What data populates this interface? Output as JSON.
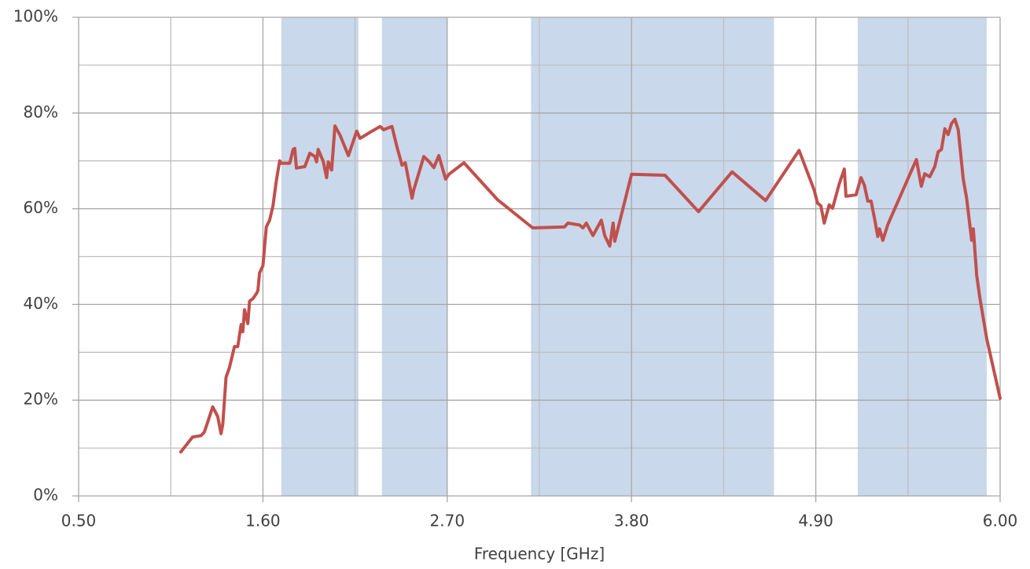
{
  "chart_data": {
    "type": "line",
    "xlabel": "Frequency [GHz]",
    "color": "#c0504d",
    "grid": true,
    "band_color": "#c9d8eb",
    "bands": [
      [
        1.71,
        2.17
      ],
      [
        2.31,
        2.7
      ],
      [
        3.2,
        4.65
      ],
      [
        5.15,
        5.92
      ]
    ],
    "xlim": [
      0.5,
      6.0
    ],
    "xticks": [
      {
        "value": 0.5,
        "label": "0.50"
      },
      {
        "value": 1.6,
        "label": "1.60"
      },
      {
        "value": 2.7,
        "label": "2.70"
      },
      {
        "value": 3.8,
        "label": "3.80"
      },
      {
        "value": 4.9,
        "label": "4.90"
      },
      {
        "value": 6.0,
        "label": "6.00"
      }
    ],
    "xminor": [
      1.05,
      2.15,
      3.25,
      4.35,
      5.45
    ],
    "ylim": [
      0,
      100
    ],
    "yticks": [
      {
        "value": 0,
        "label": "0%"
      },
      {
        "value": 20,
        "label": "20%"
      },
      {
        "value": 40,
        "label": "40%"
      },
      {
        "value": 60,
        "label": "60%"
      },
      {
        "value": 80,
        "label": "80%"
      },
      {
        "value": 100,
        "label": "100%"
      }
    ],
    "yminor": [
      10,
      30,
      50,
      70,
      90
    ],
    "x": [
      1.11,
      1.18,
      1.23,
      1.25,
      1.27,
      1.3,
      1.33,
      1.35,
      1.36,
      1.38,
      1.4,
      1.43,
      1.45,
      1.47,
      1.48,
      1.49,
      1.51,
      1.52,
      1.54,
      1.56,
      1.57,
      1.58,
      1.6,
      1.62,
      1.64,
      1.66,
      1.68,
      1.7,
      1.71,
      1.76,
      1.78,
      1.79,
      1.8,
      1.85,
      1.88,
      1.91,
      1.92,
      1.93,
      1.96,
      1.98,
      1.99,
      2.01,
      2.03,
      2.06,
      2.11,
      2.16,
      2.18,
      2.24,
      2.3,
      2.32,
      2.37,
      2.4,
      2.43,
      2.45,
      2.49,
      2.5,
      2.56,
      2.59,
      2.62,
      2.65,
      2.69,
      2.71,
      2.8,
      3.0,
      3.21,
      3.4,
      3.42,
      3.49,
      3.51,
      3.53,
      3.57,
      3.62,
      3.64,
      3.67,
      3.69,
      3.7,
      3.8,
      4.0,
      4.2,
      4.4,
      4.6,
      4.8,
      4.89,
      4.91,
      4.93,
      4.95,
      4.98,
      5.0,
      5.04,
      5.07,
      5.08,
      5.14,
      5.17,
      5.19,
      5.21,
      5.23,
      5.25,
      5.27,
      5.28,
      5.3,
      5.33,
      5.5,
      5.53,
      5.55,
      5.58,
      5.61,
      5.63,
      5.65,
      5.67,
      5.69,
      5.71,
      5.73,
      5.75,
      5.78,
      5.8,
      5.83,
      5.84,
      5.86,
      5.88,
      5.92,
      6.0
    ],
    "values": [
      9.2,
      12.3,
      12.6,
      13.3,
      15.4,
      18.6,
      16.6,
      13.0,
      14.9,
      24.8,
      26.8,
      31.2,
      31.2,
      35.8,
      34.3,
      38.9,
      36.0,
      40.7,
      41.2,
      42.2,
      42.9,
      46.6,
      48.1,
      56.2,
      57.6,
      60.6,
      65.8,
      70.0,
      69.5,
      69.5,
      72.4,
      72.6,
      68.5,
      68.8,
      71.6,
      70.9,
      69.8,
      72.4,
      69.9,
      66.5,
      69.8,
      68.1,
      77.3,
      75.4,
      71.1,
      76.2,
      74.7,
      76.0,
      77.2,
      76.5,
      77.2,
      72.9,
      69.1,
      69.6,
      62.2,
      63.9,
      70.9,
      69.9,
      68.6,
      71.1,
      66.2,
      67.2,
      69.6,
      61.9,
      56.0,
      56.2,
      57.0,
      56.6,
      56.0,
      57.0,
      54.4,
      57.6,
      54.4,
      52.2,
      57.0,
      53.2,
      67.2,
      67.0,
      59.4,
      67.7,
      61.7,
      72.2,
      63.9,
      61.2,
      60.6,
      57.0,
      60.8,
      60.1,
      65.2,
      68.3,
      62.6,
      62.9,
      66.5,
      64.9,
      61.6,
      61.6,
      58.0,
      54.2,
      55.8,
      53.4,
      56.7,
      70.3,
      64.7,
      67.3,
      66.7,
      68.8,
      71.9,
      72.4,
      76.7,
      75.5,
      77.8,
      78.7,
      76.5,
      66.2,
      62.2,
      53.4,
      55.8,
      46.1,
      41.2,
      32.8,
      20.4
    ]
  }
}
